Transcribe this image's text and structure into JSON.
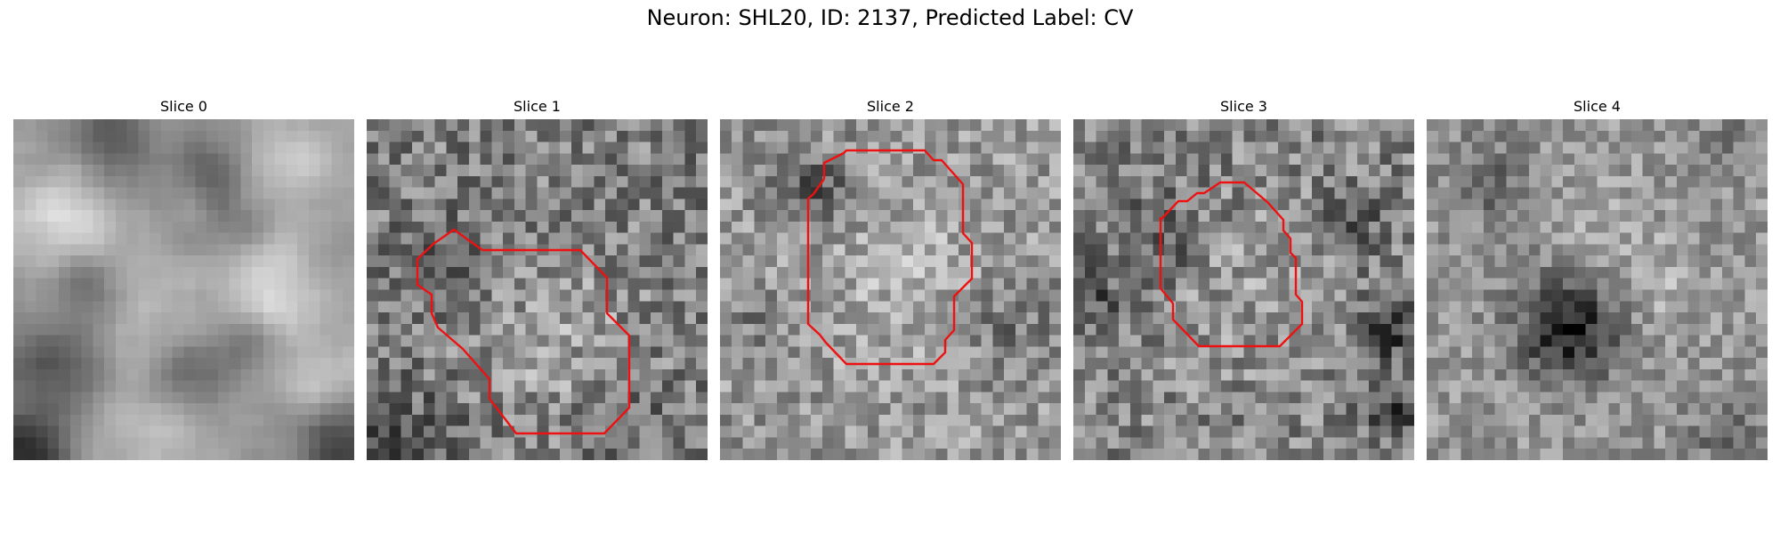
{
  "figure": {
    "title": "Neuron: SHL20, ID: 2137, Predicted Label: CV"
  },
  "colors": {
    "roi_outline": "#ee1111",
    "colormap": "gray"
  },
  "panels": [
    {
      "title": "Slice 0",
      "has_roi": false
    },
    {
      "title": "Slice 1",
      "has_roi": true
    },
    {
      "title": "Slice 2",
      "has_roi": true
    },
    {
      "title": "Slice 3",
      "has_roi": true
    },
    {
      "title": "Slice 4",
      "has_roi": false
    }
  ]
}
